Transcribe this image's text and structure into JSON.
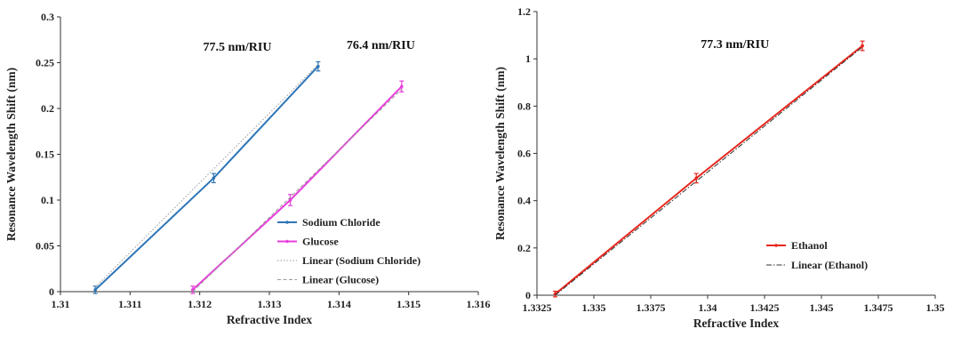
{
  "chart_data": [
    {
      "type": "line",
      "xlabel": "Refractive Index",
      "ylabel": "Resonance Wavelength Shift (nm)",
      "xlim": [
        1.31,
        1.316
      ],
      "ylim": [
        0,
        0.3
      ],
      "xticks": [
        "1.31",
        "1.311",
        "1.312",
        "1.313",
        "1.314",
        "1.315",
        "1.316"
      ],
      "yticks": [
        "0",
        "0.05",
        "0.1",
        "0.15",
        "0.2",
        "0.25",
        "0.3"
      ],
      "xtick_values": [
        1.31,
        1.311,
        1.312,
        1.313,
        1.314,
        1.315,
        1.316
      ],
      "ytick_values": [
        0,
        0.05,
        0.1,
        0.15,
        0.2,
        0.25,
        0.3
      ],
      "grid": false,
      "legend_position": "bottom-right",
      "series": [
        {
          "name": "Sodium Chloride",
          "color": "#2E75B6",
          "style": "solid",
          "x": [
            1.3105,
            1.3122,
            1.3137
          ],
          "y": [
            0.002,
            0.124,
            0.246
          ],
          "error": [
            0.004,
            0.005,
            0.005
          ]
        },
        {
          "name": "Glucose",
          "color": "#E83EDC",
          "style": "solid",
          "x": [
            1.3119,
            1.3133,
            1.3149
          ],
          "y": [
            0.002,
            0.1,
            0.224
          ],
          "error": [
            0.004,
            0.006,
            0.006
          ]
        },
        {
          "name": "Linear (Sodium Chloride)",
          "color": "#9a9a9a",
          "style": "dotted",
          "x": [
            1.3105,
            1.3137
          ],
          "y": [
            0.005,
            0.248
          ]
        },
        {
          "name": "Linear (Glucose)",
          "color": "#9a9a9a",
          "style": "dashed",
          "x": [
            1.3119,
            1.3149
          ],
          "y": [
            0.0,
            0.221
          ]
        }
      ],
      "annotations": [
        {
          "text": "77.5 nm/RIU",
          "x": 1.31254,
          "y": 0.263
        },
        {
          "text": "76.4 nm/RIU",
          "x": 1.3146,
          "y": 0.265
        }
      ]
    },
    {
      "type": "line",
      "xlabel": "Refractive Index",
      "ylabel": "Resonance Wavelength Shift (nm)",
      "xlim": [
        1.3325,
        1.35
      ],
      "ylim": [
        0,
        1.2
      ],
      "xticks": [
        "1.3325",
        "1.335",
        "1.3375",
        "1.34",
        "1.3425",
        "1.345",
        "1.3475",
        "1.35"
      ],
      "yticks": [
        "0",
        "0.2",
        "0.4",
        "0.6",
        "0.8",
        "1",
        "1.2"
      ],
      "xtick_values": [
        1.3325,
        1.335,
        1.3375,
        1.34,
        1.3425,
        1.345,
        1.3475,
        1.35
      ],
      "ytick_values": [
        0,
        0.2,
        0.4,
        0.6,
        0.8,
        1.0,
        1.2
      ],
      "grid": false,
      "legend_position": "bottom-right",
      "series": [
        {
          "name": "Ethanol",
          "color": "#E8261B",
          "style": "solid",
          "x": [
            1.3333,
            1.3395,
            1.3468
          ],
          "y": [
            0.005,
            0.495,
            1.055
          ],
          "error": [
            0.012,
            0.02,
            0.02
          ]
        },
        {
          "name": "Linear (Ethanol)",
          "color": "#333333",
          "style": "dashdot",
          "x": [
            1.3333,
            1.3468
          ],
          "y": [
            0.0,
            1.05
          ]
        }
      ],
      "annotations": [
        {
          "text": "77.3 nm/RIU",
          "x": 1.3412,
          "y": 1.045
        }
      ]
    }
  ]
}
